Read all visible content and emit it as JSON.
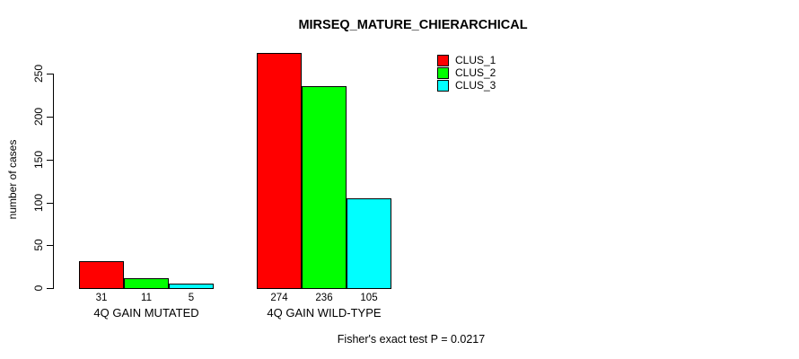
{
  "title": "MIRSEQ_MATURE_CHIERARCHICAL",
  "footer": "Fisher's exact test P = 0.0217",
  "chart_data": {
    "type": "bar",
    "title": "MIRSEQ_MATURE_CHIERARCHICAL",
    "categories": [
      "4Q GAIN MUTATED",
      "4Q GAIN WILD-TYPE"
    ],
    "series": [
      {
        "name": "CLUS_1",
        "color": "#FF0000",
        "values": [
          31,
          274
        ]
      },
      {
        "name": "CLUS_2",
        "color": "#00FF00",
        "values": [
          11,
          236
        ]
      },
      {
        "name": "CLUS_3",
        "color": "#00FFFF",
        "values": [
          5,
          105
        ]
      }
    ],
    "xlabel": "",
    "ylabel": "number of cases",
    "yticks": [
      0,
      50,
      100,
      150,
      200,
      250
    ],
    "ylim": [
      0,
      280
    ],
    "grid": false,
    "show_bar_values": true,
    "legend_position": "top-right",
    "annotation": "Fisher's exact test P = 0.0217"
  }
}
